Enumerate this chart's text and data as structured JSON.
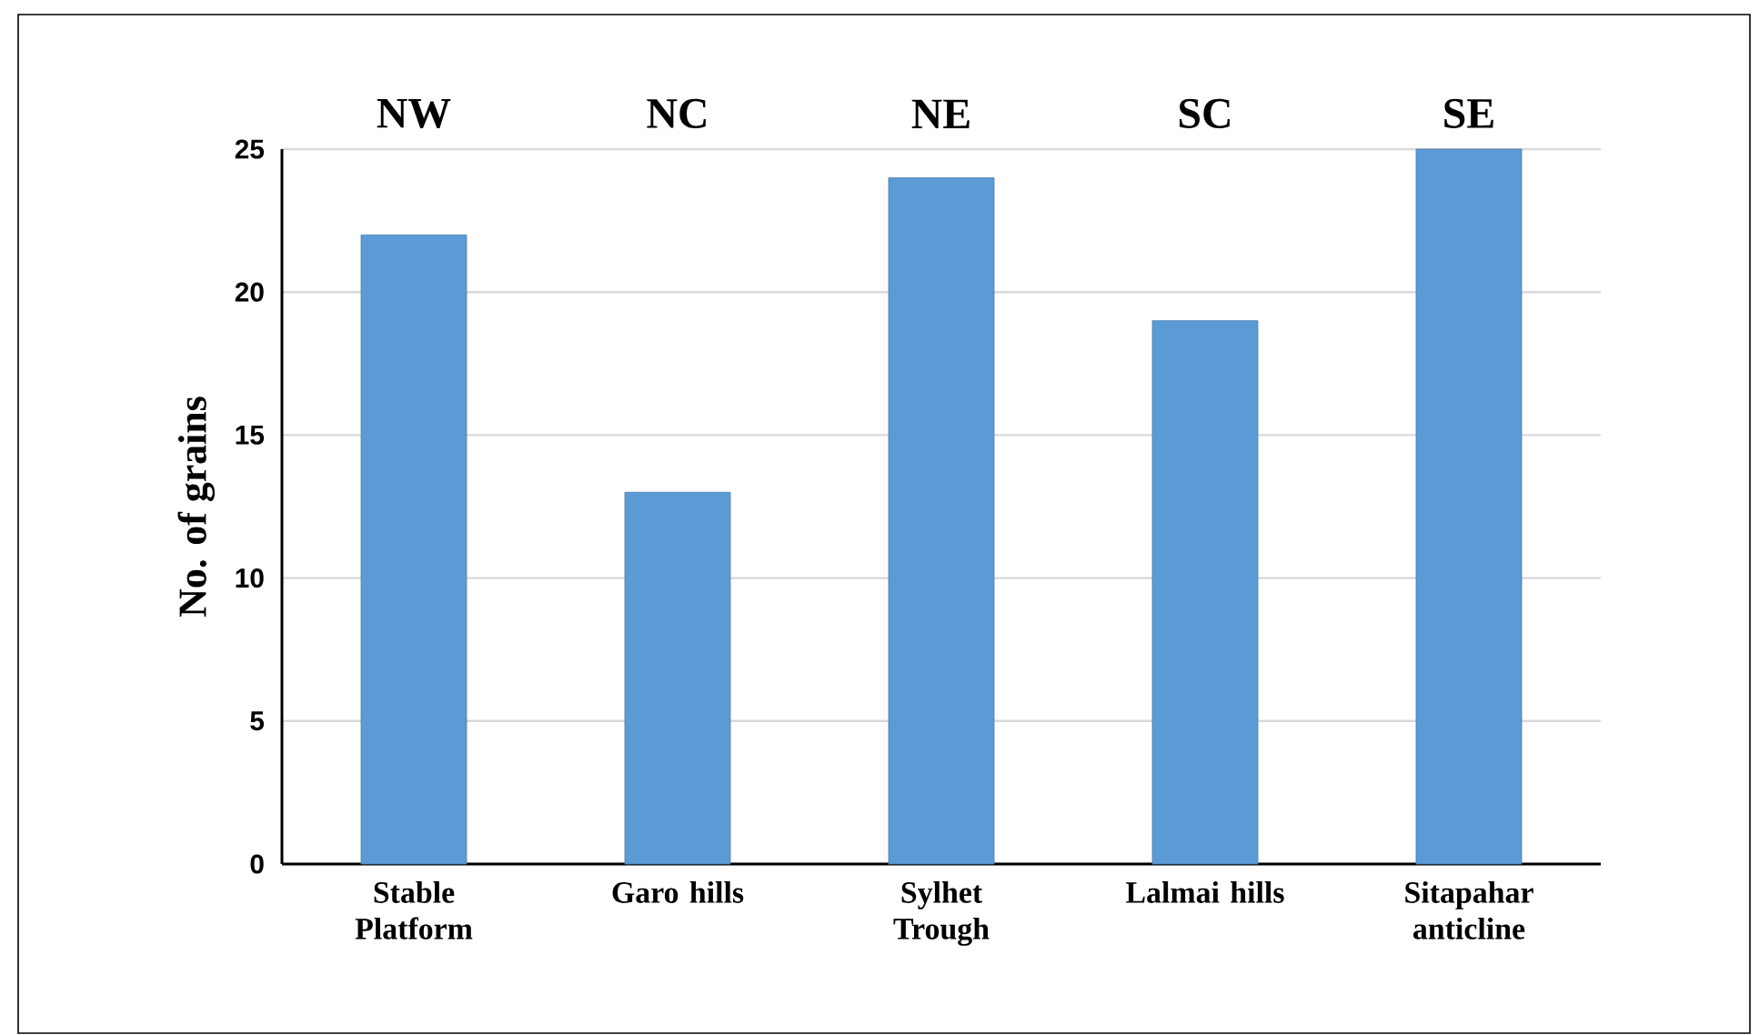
{
  "chart_data": {
    "type": "bar",
    "ylabel": "No. of grains",
    "categories": [
      "Stable Platform",
      "Garo hills",
      "Sylhet Trough",
      "Lalmai hills",
      "Sitapahar anticline"
    ],
    "values": [
      22,
      13,
      24,
      19,
      25
    ],
    "color": "#5b9bd5",
    "ylim": [
      0,
      25
    ],
    "yticks": [
      0,
      5,
      10,
      15,
      20,
      25
    ],
    "grid": "y",
    "annotations": [
      "NW",
      "NC",
      "NE",
      "SC",
      "SE"
    ]
  }
}
